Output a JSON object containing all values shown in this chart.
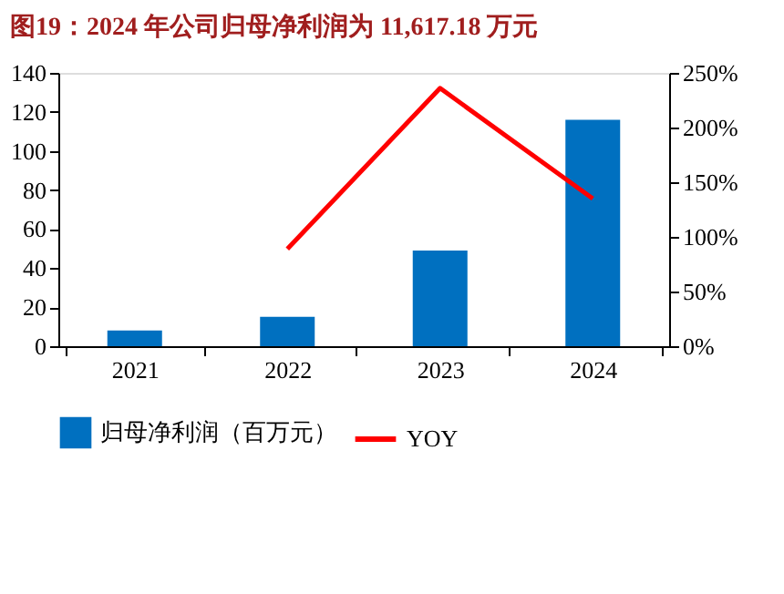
{
  "chart_data": {
    "type": "bar",
    "title": "图19：2024 年公司归母净利润为 11,617.18 万元",
    "categories": [
      "2021",
      "2022",
      "2023",
      "2024"
    ],
    "series": [
      {
        "name": "归母净利润（百万元）",
        "color": "#0070c0",
        "values": [
          8,
          15,
          49,
          116
        ]
      },
      {
        "name": "YOY",
        "type": "line",
        "axis": "y2",
        "color": "#ff0000",
        "values": [
          null,
          89,
          236,
          135
        ]
      }
    ],
    "ylim": [
      0,
      140
    ],
    "yticks": [
      0,
      20,
      40,
      60,
      80,
      100,
      120,
      140
    ],
    "y2lim": [
      0,
      250
    ],
    "y2ticks": [
      {
        "value": 0,
        "label": "0%"
      },
      {
        "value": 50,
        "label": "50%"
      },
      {
        "value": 100,
        "label": "100%"
      },
      {
        "value": 150,
        "label": "150%"
      },
      {
        "value": 200,
        "label": "200%"
      },
      {
        "value": 250,
        "label": "250%"
      }
    ],
    "grid": false,
    "legend": "bottom",
    "marker": "none",
    "line_style": "solid"
  }
}
